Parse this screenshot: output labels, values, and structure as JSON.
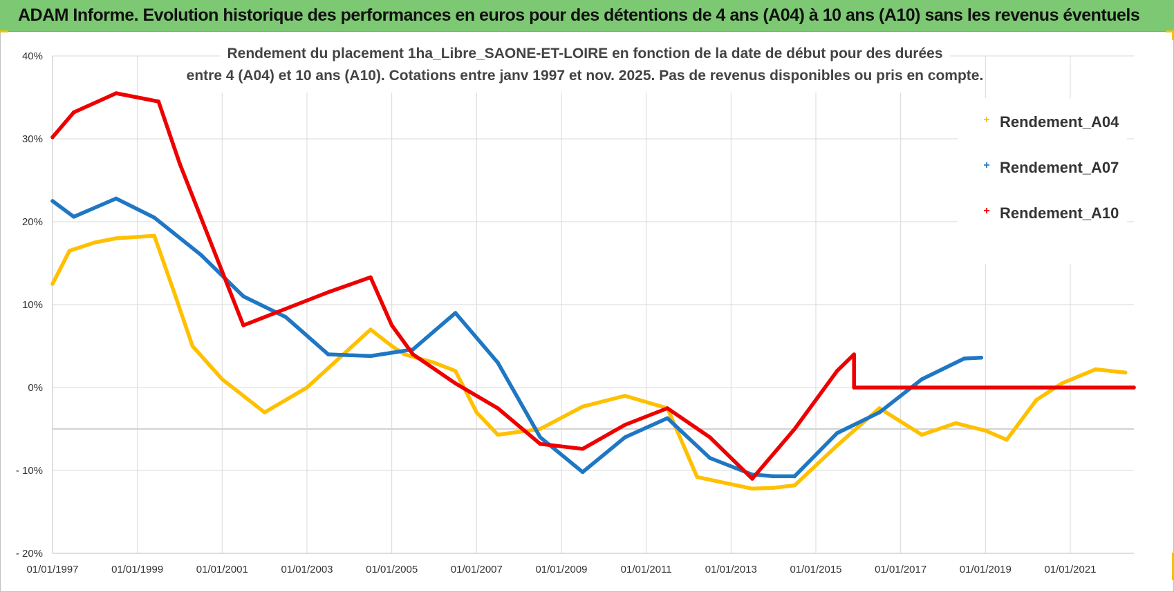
{
  "header": {
    "title": "ADAM Informe. Evolution historique des performances en euros pour des détentions de 4 ans (A04) à 10 ans (A10) sans les revenus éventuels"
  },
  "chart_data": {
    "type": "line",
    "title_line1": "Rendement du placement 1ha_Libre_SAONE-ET-LOIRE en fonction de la date de début pour des durées",
    "title_line2": "entre 4 (A04) et 10 ans (A10).  Cotations entre janv 1997 et nov. 2025. Pas de revenus disponibles ou pris en compte.",
    "xlabel": "",
    "ylabel": "",
    "xlim": [
      1997.0,
      2022.5
    ],
    "ylim": [
      -20,
      40
    ],
    "x_ticks": [
      1997,
      1999,
      2001,
      2003,
      2005,
      2007,
      2009,
      2011,
      2013,
      2015,
      2017,
      2019,
      2021
    ],
    "x_tick_labels": [
      "01/01/1997",
      "01/01/1999",
      "01/01/2001",
      "01/01/2003",
      "01/01/2005",
      "01/01/2007",
      "01/01/2009",
      "01/01/2011",
      "01/01/2013",
      "01/01/2015",
      "01/01/2017",
      "01/01/2019",
      "01/01/2021"
    ],
    "y_ticks": [
      -20,
      -10,
      0,
      10,
      20,
      30,
      40
    ],
    "y_tick_labels": [
      "- 20%",
      "- 10%",
      "0%",
      "10%",
      "20%",
      "30%",
      "40%"
    ],
    "extra_gridline_y": -5,
    "legend_position": "top-right",
    "series": [
      {
        "name": "Rendement_A04",
        "color": "#ffc000",
        "points": [
          [
            1997.0,
            12.5
          ],
          [
            1997.4,
            16.5
          ],
          [
            1998.0,
            17.5
          ],
          [
            1998.5,
            18.0
          ],
          [
            1999.4,
            18.3
          ],
          [
            1999.9,
            11.0
          ],
          [
            2000.3,
            5.0
          ],
          [
            2001.0,
            1.0
          ],
          [
            2002.0,
            -3.0
          ],
          [
            2003.0,
            0.0
          ],
          [
            2004.5,
            7.0
          ],
          [
            2005.0,
            5.0
          ],
          [
            2005.3,
            4.0
          ],
          [
            2006.0,
            3.0
          ],
          [
            2006.5,
            2.0
          ],
          [
            2007.0,
            -3.0
          ],
          [
            2007.5,
            -5.7
          ],
          [
            2008.5,
            -5.0
          ],
          [
            2009.5,
            -2.3
          ],
          [
            2010.5,
            -1.0
          ],
          [
            2011.5,
            -2.5
          ],
          [
            2012.2,
            -10.8
          ],
          [
            2013.5,
            -12.2
          ],
          [
            2014.0,
            -12.1
          ],
          [
            2014.5,
            -11.8
          ],
          [
            2015.5,
            -7.0
          ],
          [
            2016.5,
            -2.5
          ],
          [
            2017.5,
            -5.7
          ],
          [
            2018.3,
            -4.3
          ],
          [
            2019.0,
            -5.2
          ],
          [
            2019.5,
            -6.3
          ],
          [
            2020.2,
            -1.5
          ],
          [
            2020.8,
            0.5
          ],
          [
            2021.6,
            2.2
          ],
          [
            2022.3,
            1.8
          ]
        ]
      },
      {
        "name": "Rendement_A07",
        "color": "#1f77c4",
        "points": [
          [
            1997.0,
            22.5
          ],
          [
            1997.5,
            20.6
          ],
          [
            1998.5,
            22.8
          ],
          [
            1999.4,
            20.5
          ],
          [
            2000.5,
            16.0
          ],
          [
            2001.5,
            11.0
          ],
          [
            2002.5,
            8.5
          ],
          [
            2003.5,
            4.0
          ],
          [
            2004.5,
            3.8
          ],
          [
            2005.0,
            4.2
          ],
          [
            2005.5,
            4.6
          ],
          [
            2006.5,
            9.0
          ],
          [
            2007.5,
            3.0
          ],
          [
            2008.5,
            -6.0
          ],
          [
            2009.5,
            -10.2
          ],
          [
            2010.5,
            -6.0
          ],
          [
            2011.5,
            -3.7
          ],
          [
            2012.5,
            -8.5
          ],
          [
            2013.5,
            -10.5
          ],
          [
            2014.0,
            -10.7
          ],
          [
            2014.5,
            -10.7
          ],
          [
            2015.5,
            -5.5
          ],
          [
            2016.5,
            -3.0
          ],
          [
            2017.5,
            1.0
          ],
          [
            2018.5,
            3.5
          ],
          [
            2018.9,
            3.6
          ]
        ]
      },
      {
        "name": "Rendement_A10",
        "color": "#ee0000",
        "points": [
          [
            1997.0,
            30.2
          ],
          [
            1997.5,
            33.2
          ],
          [
            1998.5,
            35.5
          ],
          [
            1999.5,
            34.5
          ],
          [
            2000.0,
            27.0
          ],
          [
            2001.0,
            14.0
          ],
          [
            2001.5,
            7.5
          ],
          [
            2002.5,
            9.5
          ],
          [
            2003.5,
            11.5
          ],
          [
            2004.5,
            13.3
          ],
          [
            2005.0,
            7.5
          ],
          [
            2005.5,
            4.0
          ],
          [
            2006.5,
            0.5
          ],
          [
            2007.5,
            -2.5
          ],
          [
            2008.5,
            -6.8
          ],
          [
            2009.5,
            -7.4
          ],
          [
            2010.5,
            -4.5
          ],
          [
            2011.5,
            -2.5
          ],
          [
            2012.5,
            -6.0
          ],
          [
            2013.5,
            -11.0
          ],
          [
            2014.5,
            -5.0
          ],
          [
            2015.5,
            2.0
          ],
          [
            2015.9,
            4.0
          ],
          [
            2015.9,
            0.0
          ],
          [
            2022.5,
            0.0
          ]
        ]
      }
    ]
  }
}
